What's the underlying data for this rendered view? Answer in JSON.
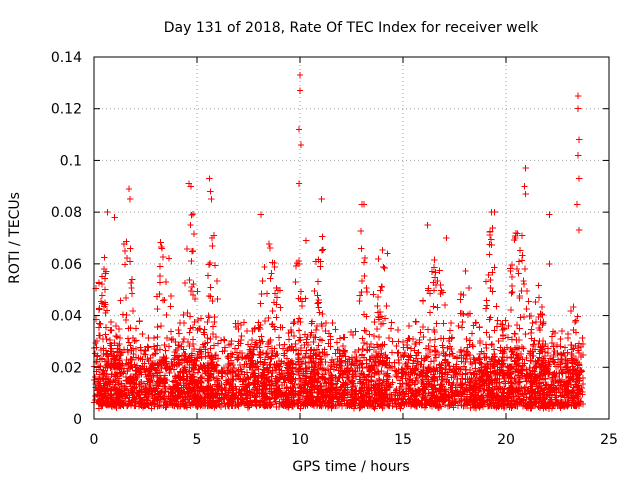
{
  "chart_data": {
    "type": "scatter",
    "title": "Day 131 of 2018, Rate Of TEC Index for receiver welk",
    "xlabel": "GPS time / hours",
    "ylabel": "ROTI / TECUs",
    "xlim": [
      0,
      25
    ],
    "ylim": [
      0,
      0.14
    ],
    "xticks": [
      0,
      5,
      10,
      15,
      20,
      25
    ],
    "yticks": [
      0,
      0.02,
      0.04,
      0.06,
      0.08,
      0.1,
      0.12,
      0.14
    ],
    "xtick_labels": [
      "0",
      "5",
      "10",
      "15",
      "20",
      "25"
    ],
    "ytick_labels": [
      "0",
      "0.02",
      "0.04",
      "0.06",
      "0.08",
      "0.1",
      "0.12",
      "0.14"
    ],
    "grid": true,
    "marker": "+",
    "marker_color": "#ff0000",
    "x_data_range": [
      0,
      23.75
    ],
    "typical_band": [
      0.005,
      0.03
    ],
    "notable_points": [
      {
        "x": 10.0,
        "y": 0.133
      },
      {
        "x": 10.0,
        "y": 0.127
      },
      {
        "x": 9.95,
        "y": 0.112
      },
      {
        "x": 10.05,
        "y": 0.106
      },
      {
        "x": 9.95,
        "y": 0.091
      },
      {
        "x": 23.5,
        "y": 0.125
      },
      {
        "x": 23.5,
        "y": 0.12
      },
      {
        "x": 23.55,
        "y": 0.108
      },
      {
        "x": 23.5,
        "y": 0.102
      },
      {
        "x": 23.55,
        "y": 0.093
      },
      {
        "x": 23.45,
        "y": 0.083
      },
      {
        "x": 23.55,
        "y": 0.073
      },
      {
        "x": 20.95,
        "y": 0.097
      },
      {
        "x": 20.9,
        "y": 0.09
      },
      {
        "x": 20.95,
        "y": 0.087
      },
      {
        "x": 1.7,
        "y": 0.089
      },
      {
        "x": 1.75,
        "y": 0.085
      },
      {
        "x": 4.6,
        "y": 0.091
      },
      {
        "x": 4.7,
        "y": 0.09
      },
      {
        "x": 5.6,
        "y": 0.093
      },
      {
        "x": 5.65,
        "y": 0.088
      },
      {
        "x": 5.7,
        "y": 0.085
      },
      {
        "x": 13.0,
        "y": 0.083
      },
      {
        "x": 13.1,
        "y": 0.083
      },
      {
        "x": 22.1,
        "y": 0.079
      },
      {
        "x": 22.1,
        "y": 0.06
      },
      {
        "x": 0.65,
        "y": 0.08
      },
      {
        "x": 1.0,
        "y": 0.078
      },
      {
        "x": 8.1,
        "y": 0.079
      },
      {
        "x": 10.3,
        "y": 0.069
      },
      {
        "x": 11.05,
        "y": 0.085
      },
      {
        "x": 19.3,
        "y": 0.08
      },
      {
        "x": 19.45,
        "y": 0.08
      },
      {
        "x": 16.2,
        "y": 0.075
      },
      {
        "x": 17.1,
        "y": 0.07
      },
      {
        "x": 14.25,
        "y": 0.064
      }
    ],
    "activity_clusters": [
      {
        "center": 0.4,
        "width": 0.5,
        "peak": 0.066,
        "density": 1.0
      },
      {
        "center": 1.6,
        "width": 0.35,
        "peak": 0.076,
        "density": 1.0
      },
      {
        "center": 3.4,
        "width": 0.5,
        "peak": 0.075,
        "density": 0.8
      },
      {
        "center": 4.7,
        "width": 0.45,
        "peak": 0.085,
        "density": 1.1
      },
      {
        "center": 5.7,
        "width": 0.35,
        "peak": 0.08,
        "density": 1.1
      },
      {
        "center": 8.6,
        "width": 0.7,
        "peak": 0.07,
        "density": 1.0
      },
      {
        "center": 10.0,
        "width": 0.35,
        "peak": 0.07,
        "density": 1.0
      },
      {
        "center": 11.0,
        "width": 0.4,
        "peak": 0.078,
        "density": 1.0
      },
      {
        "center": 13.0,
        "width": 0.35,
        "peak": 0.08,
        "density": 1.3
      },
      {
        "center": 13.9,
        "width": 0.45,
        "peak": 0.07,
        "density": 1.0
      },
      {
        "center": 16.5,
        "width": 0.7,
        "peak": 0.07,
        "density": 1.0
      },
      {
        "center": 18.0,
        "width": 0.45,
        "peak": 0.06,
        "density": 0.8
      },
      {
        "center": 19.3,
        "width": 0.35,
        "peak": 0.075,
        "density": 1.0
      },
      {
        "center": 20.6,
        "width": 0.6,
        "peak": 0.075,
        "density": 1.1
      },
      {
        "center": 21.6,
        "width": 0.5,
        "peak": 0.055,
        "density": 0.9
      },
      {
        "center": 23.3,
        "width": 0.35,
        "peak": 0.05,
        "density": 1.0
      }
    ]
  }
}
